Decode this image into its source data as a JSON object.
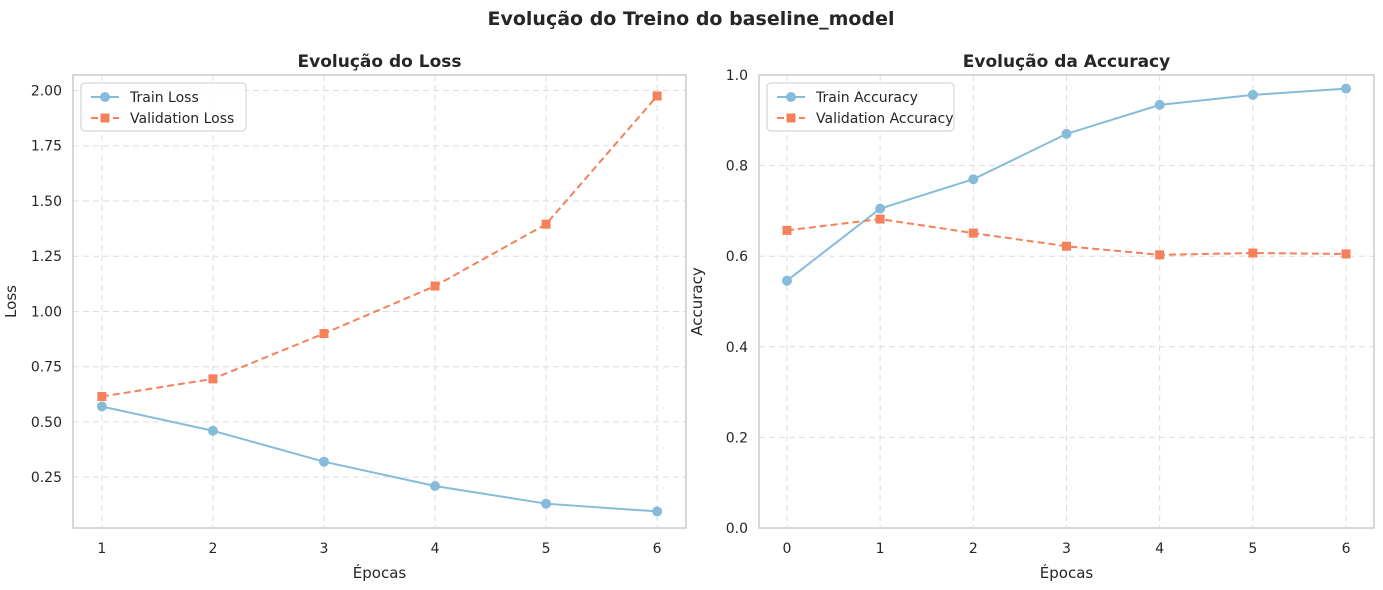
{
  "figure": {
    "title": "Evolução do Treino do baseline_model",
    "colors": {
      "train": "#86bcd9",
      "validation": "#f5805b",
      "grid": "#dddddd",
      "spine": "#cccccc"
    }
  },
  "chart_data": [
    {
      "type": "line",
      "title": "Evolução do Loss",
      "xlabel": "Épocas",
      "ylabel": "Loss",
      "x": [
        1,
        2,
        3,
        4,
        5,
        6
      ],
      "xticks": [
        "1",
        "2",
        "3",
        "4",
        "5",
        "6"
      ],
      "yticks": [
        "0.25",
        "0.50",
        "0.75",
        "1.00",
        "1.25",
        "1.50",
        "1.75",
        "2.00"
      ],
      "xlim": [
        0.74,
        6.26
      ],
      "ylim": [
        0.02,
        2.07
      ],
      "grid": true,
      "legend_position": "top-left",
      "series": [
        {
          "name": "Train Loss",
          "marker": "circle",
          "linestyle": "solid",
          "values": [
            0.57,
            0.46,
            0.32,
            0.21,
            0.13,
            0.095
          ]
        },
        {
          "name": "Validation Loss",
          "marker": "square",
          "linestyle": "dashed",
          "values": [
            0.615,
            0.695,
            0.9,
            1.115,
            1.395,
            1.975
          ]
        }
      ]
    },
    {
      "type": "line",
      "title": "Evolução da Accuracy",
      "xlabel": "Épocas",
      "ylabel": "Accuracy",
      "x": [
        0,
        1,
        2,
        3,
        4,
        5,
        6
      ],
      "xticks": [
        "0",
        "1",
        "2",
        "3",
        "4",
        "5",
        "6"
      ],
      "yticks": [
        "0.0",
        "0.2",
        "0.4",
        "0.6",
        "0.8",
        "1.0"
      ],
      "xlim": [
        -0.3,
        6.3
      ],
      "ylim": [
        0,
        1
      ],
      "grid": true,
      "legend_position": "top-left",
      "series": [
        {
          "name": "Train Accuracy",
          "marker": "circle",
          "linestyle": "solid",
          "values": [
            0.546,
            0.705,
            0.77,
            0.87,
            0.934,
            0.956,
            0.97
          ]
        },
        {
          "name": "Validation Accuracy",
          "marker": "square",
          "linestyle": "dashed",
          "values": [
            0.657,
            0.682,
            0.651,
            0.622,
            0.603,
            0.607,
            0.605
          ]
        }
      ]
    }
  ]
}
